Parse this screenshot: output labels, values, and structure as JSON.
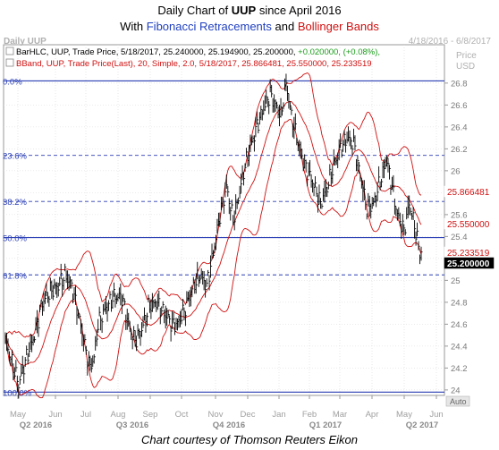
{
  "header": {
    "title_prefix": "Daily Chart of ",
    "title_symbol": "UUP",
    "title_suffix": " since April 2016",
    "subtitle_prefix": "With ",
    "subtitle_fib": "Fibonacci Retracements",
    "subtitle_and": " and ",
    "subtitle_bb": "Bollinger Bands"
  },
  "footer": {
    "courtesy": "Chart courtesy of Thomson Reuters Eikon"
  },
  "chart_data": {
    "type": "candlestick",
    "panel_label": "Daily UUP",
    "date_range": "4/18/2016 - 6/8/2017",
    "axis_title_top": "Price",
    "axis_title_unit": "USD",
    "legend": [
      {
        "prefix": "BarHLC, UUP, Trade Price, 5/18/2017, 25.240000, 25.194900, 25.200000,",
        "change": "+0.020000, (+0.08%),",
        "color": "#000000"
      },
      {
        "text": "BBand, UUP, Trade Price(Last), 20, Simple, 2.0, 5/18/2017, 25.866481, 25.550000, 25.233519",
        "color": "#d01010"
      }
    ],
    "ylim": [
      23.95,
      27.15
    ],
    "y_ticks": [
      24,
      24.2,
      24.4,
      24.6,
      24.8,
      25,
      25.2,
      25.4,
      25.6,
      25.8,
      26,
      26.2,
      26.4,
      26.6,
      26.8
    ],
    "y_tick_labels": [
      "24",
      "24.2",
      "24.4",
      "24.6",
      "24.8",
      "25",
      "25.2",
      "25.4",
      "25.6",
      "25.8",
      "26",
      "26.2",
      "26.4",
      "26.6",
      "26.8"
    ],
    "month_labels": [
      "May",
      "Jun",
      "Jul",
      "Aug",
      "Sep",
      "Oct",
      "Nov",
      "Dec",
      "Jan",
      "Feb",
      "Mar",
      "Apr",
      "May",
      "Jun"
    ],
    "quarter_labels": [
      "Q2 2016",
      "Q3 2016",
      "Q4 2016",
      "Q1 2017",
      "Q2 2017"
    ],
    "fibonacci": [
      {
        "label": "0.0%",
        "value": 26.82,
        "style": "solid"
      },
      {
        "label": "23.6%",
        "value": 26.14,
        "style": "dashed"
      },
      {
        "label": "38.2%",
        "value": 25.72,
        "style": "dashed"
      },
      {
        "label": "50.0%",
        "value": 25.39,
        "style": "solid"
      },
      {
        "label": "61.8%",
        "value": 25.05,
        "style": "dashed"
      },
      {
        "label": "100.0%",
        "value": 23.98,
        "style": "solid"
      }
    ],
    "price_markers": [
      {
        "label": "25.866481",
        "value": 25.866481,
        "bg": "#ffffff",
        "fg": "#d01010"
      },
      {
        "label": "25.550000",
        "value": 25.55,
        "bg": "#ffffff",
        "fg": "#d01010"
      },
      {
        "label": "25.233519",
        "value": 25.233519,
        "bg": "#ffffff",
        "fg": "#d01010"
      },
      {
        "label": "25.200000",
        "value": 25.2,
        "bg": "#000000",
        "fg": "#ffffff"
      }
    ],
    "series": [
      {
        "name": "Trade Price",
        "keypoints": [
          [
            0,
            24.45
          ],
          [
            5,
            24.25
          ],
          [
            10,
            24.05
          ],
          [
            16,
            24.3
          ],
          [
            22,
            24.5
          ],
          [
            28,
            24.8
          ],
          [
            34,
            24.9
          ],
          [
            40,
            24.95
          ],
          [
            45,
            25.05
          ],
          [
            50,
            24.95
          ],
          [
            55,
            24.7
          ],
          [
            60,
            24.4
          ],
          [
            64,
            24.2
          ],
          [
            67,
            24.3
          ],
          [
            70,
            24.6
          ],
          [
            76,
            24.75
          ],
          [
            82,
            24.85
          ],
          [
            88,
            24.85
          ],
          [
            94,
            24.55
          ],
          [
            98,
            24.45
          ],
          [
            103,
            24.55
          ],
          [
            108,
            24.75
          ],
          [
            114,
            24.8
          ],
          [
            120,
            24.7
          ],
          [
            126,
            24.6
          ],
          [
            130,
            24.6
          ],
          [
            136,
            24.75
          ],
          [
            142,
            24.95
          ],
          [
            147,
            25.05
          ],
          [
            152,
            24.95
          ],
          [
            157,
            25.25
          ],
          [
            162,
            25.6
          ],
          [
            167,
            25.85
          ],
          [
            172,
            25.55
          ],
          [
            176,
            25.75
          ],
          [
            181,
            26.05
          ],
          [
            186,
            26.25
          ],
          [
            191,
            26.45
          ],
          [
            196,
            26.6
          ],
          [
            200,
            26.7
          ],
          [
            204,
            26.6
          ],
          [
            208,
            26.5
          ],
          [
            212,
            26.8
          ],
          [
            216,
            26.5
          ],
          [
            220,
            26.3
          ],
          [
            226,
            26.05
          ],
          [
            232,
            25.9
          ],
          [
            238,
            25.7
          ],
          [
            243,
            25.85
          ],
          [
            248,
            26.05
          ],
          [
            253,
            26.2
          ],
          [
            258,
            26.3
          ],
          [
            263,
            26.25
          ],
          [
            268,
            25.95
          ],
          [
            273,
            25.65
          ],
          [
            278,
            25.7
          ],
          [
            283,
            25.9
          ],
          [
            288,
            26.1
          ],
          [
            292,
            25.85
          ],
          [
            296,
            25.6
          ],
          [
            301,
            25.45
          ],
          [
            305,
            25.7
          ],
          [
            309,
            25.5
          ],
          [
            313,
            25.25
          ]
        ],
        "color": "#000000"
      },
      {
        "name": "BB Upper",
        "color": "#d01010"
      },
      {
        "name": "BB Middle",
        "color": "#d01010"
      },
      {
        "name": "BB Lower",
        "color": "#d01010"
      }
    ],
    "grid": true,
    "last_price": 25.2
  }
}
